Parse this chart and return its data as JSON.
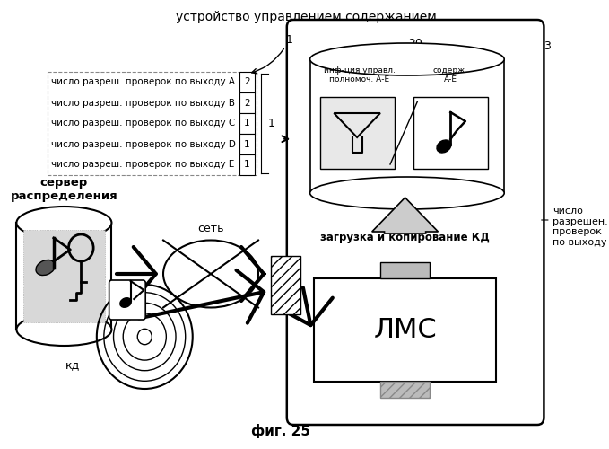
{
  "title_top": "устройство управлением содержанием",
  "caption": "фиг. 25",
  "label_server": "сервер\nраспределения",
  "label_net": "сеть",
  "label_kd_bottom": "кд",
  "label_lms": "ЛМС",
  "label_load": "загрузка и копирование КД",
  "label_num_checks_right": "число\nразрешен.\nпроверок\nпо выходу",
  "label_db_top_left": "инф-ция управл.\nполномоч. А-Е",
  "label_db_top_right": "содерж.\nА-Е",
  "label_num20": "20",
  "label_num3": "3",
  "label_num1": "1",
  "table_rows": [
    "число разреш. проверок по выходу А",
    "число разреш. проверок по выходу B",
    "число разреш. проверок по выходу C",
    "число разреш. проверок по выходу D",
    "число разреш. проверок по выходу E"
  ],
  "table_values": [
    "2",
    "2",
    "1",
    "1",
    "1"
  ],
  "bg_color": "#ffffff",
  "line_color": "#000000"
}
